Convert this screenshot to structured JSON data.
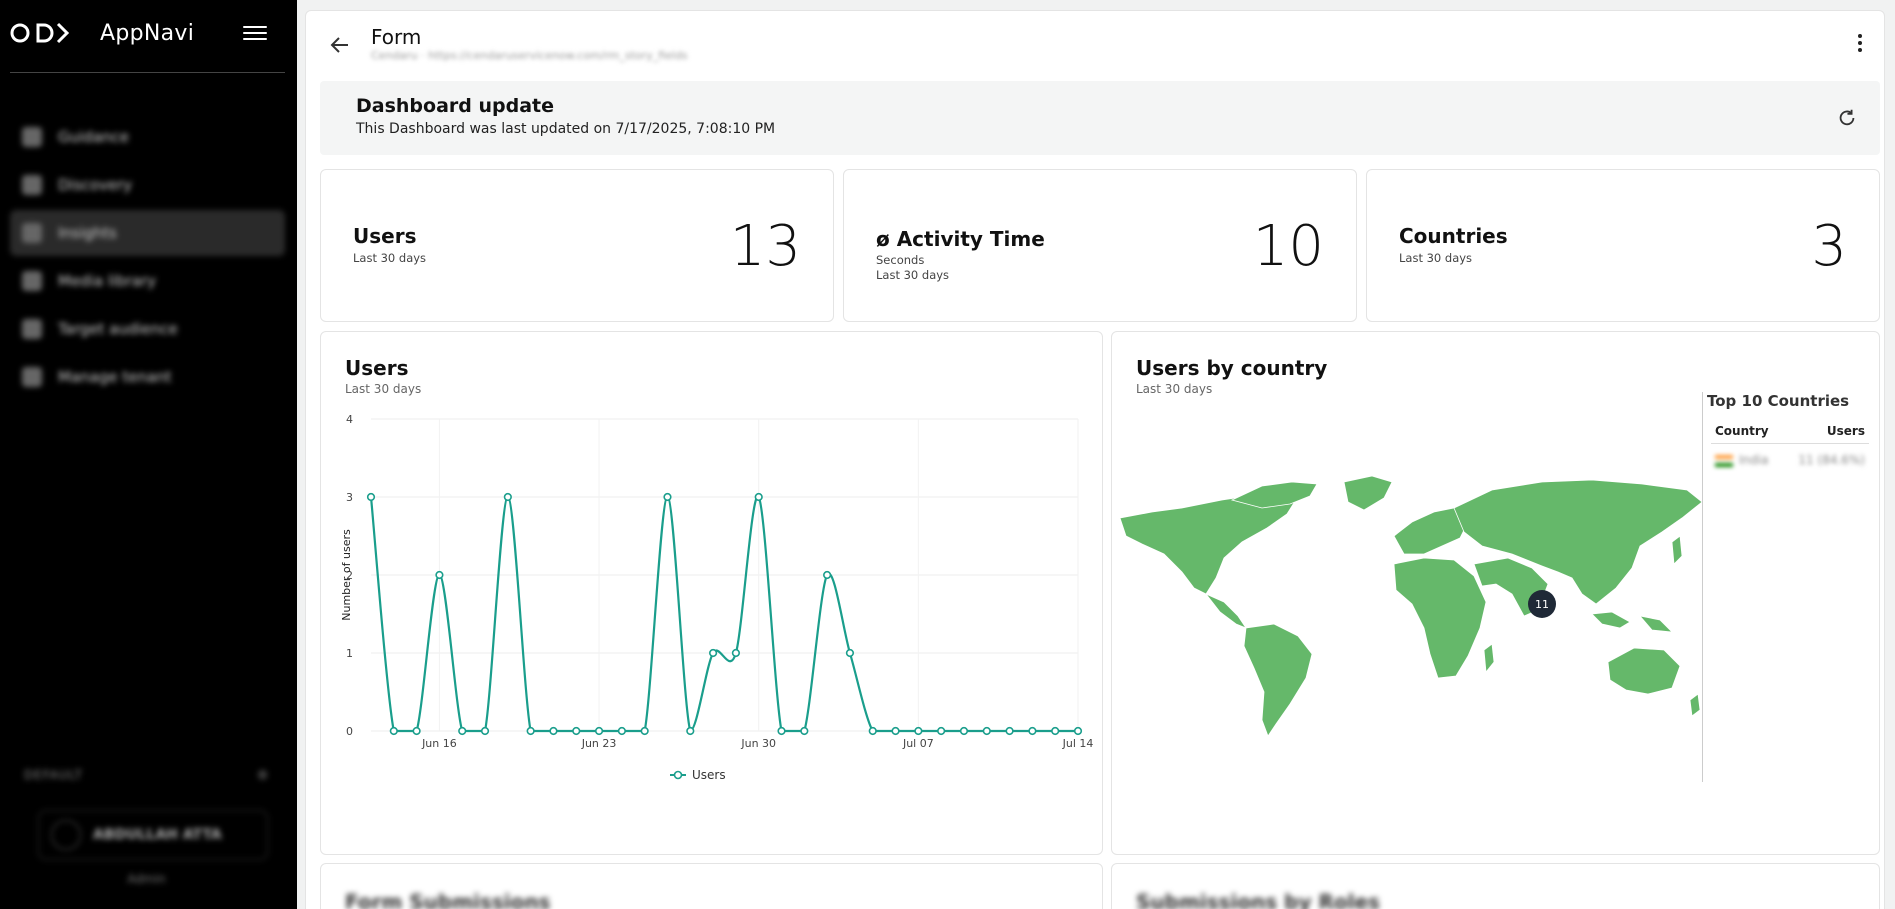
{
  "app": {
    "name": "AppNavi"
  },
  "sidebar": {
    "items": [
      {
        "label": "Guidance",
        "icon": "guidance-icon"
      },
      {
        "label": "Discovery",
        "icon": "search-icon"
      },
      {
        "label": "Insights",
        "icon": "insights-icon",
        "active": true
      },
      {
        "label": "Media library",
        "icon": "image-icon"
      },
      {
        "label": "Target audience",
        "icon": "star-icon"
      },
      {
        "label": "Manage tenant",
        "icon": "gear-icon"
      }
    ],
    "workspace": "DEFAULT",
    "user": {
      "name": "ABDULLAH ATTA",
      "role": "Admin"
    }
  },
  "header": {
    "title": "Form",
    "subtitle": "Cendaru · https://cendaruservicenow.com/rm_story_fields"
  },
  "update": {
    "title": "Dashboard update",
    "text": "This Dashboard was last updated on 7/17/2025, 7:08:10 PM"
  },
  "stats": [
    {
      "title": "Users",
      "lines": [
        "Last 30 days"
      ],
      "value": "13"
    },
    {
      "title": "ø Activity Time",
      "lines": [
        "Seconds",
        "Last 30 days"
      ],
      "value": "10"
    },
    {
      "title": "Countries",
      "lines": [
        "Last 30 days"
      ],
      "value": "3"
    }
  ],
  "users_panel": {
    "title": "Users",
    "subtitle": "Last 30 days"
  },
  "country_panel": {
    "title": "Users by country",
    "subtitle": "Last 30 days",
    "marker_value": "11",
    "top10": {
      "title": "Top 10 Countries",
      "col_country": "Country",
      "col_users": "Users",
      "rows": [
        {
          "country": "India",
          "users": "11 (84.6%)"
        }
      ]
    }
  },
  "bottom": {
    "left_title": "Form Submissions",
    "right_title": "Submissions by Roles"
  },
  "colors": {
    "accent": "#1a9e8c",
    "map_land": "#65b86a",
    "marker": "#1f2937",
    "sidebar_bg": "#000000"
  },
  "chart_data": {
    "type": "line",
    "ylabel": "Number of users",
    "ylim": [
      0,
      4
    ],
    "yticks": [
      "0",
      "1",
      "2",
      "3",
      "4"
    ],
    "x": [
      "Jun 13",
      "Jun 14",
      "Jun 15",
      "Jun 16",
      "Jun 17",
      "Jun 18",
      "Jun 19",
      "Jun 20",
      "Jun 21",
      "Jun 22",
      "Jun 23",
      "Jun 24",
      "Jun 25",
      "Jun 26",
      "Jun 27",
      "Jun 28",
      "Jun 29",
      "Jun 30",
      "Jul 01",
      "Jul 02",
      "Jul 03",
      "Jul 04",
      "Jul 05",
      "Jul 06",
      "Jul 07",
      "Jul 08",
      "Jul 09",
      "Jul 10",
      "Jul 11",
      "Jul 12",
      "Jul 13",
      "Jul 14"
    ],
    "xticks": [
      "Jun 16",
      "Jun 23",
      "Jun 30",
      "Jul 07",
      "Jul 14"
    ],
    "series": [
      {
        "name": "Users",
        "values": [
          3,
          0,
          0,
          2,
          0,
          0,
          3,
          0,
          0,
          0,
          0,
          0,
          0,
          3,
          0,
          1,
          1,
          3,
          0,
          0,
          2,
          1,
          0,
          0,
          0,
          0,
          0,
          0,
          0,
          0,
          0,
          0
        ]
      }
    ],
    "grid": true,
    "legend": "bottom-center"
  }
}
